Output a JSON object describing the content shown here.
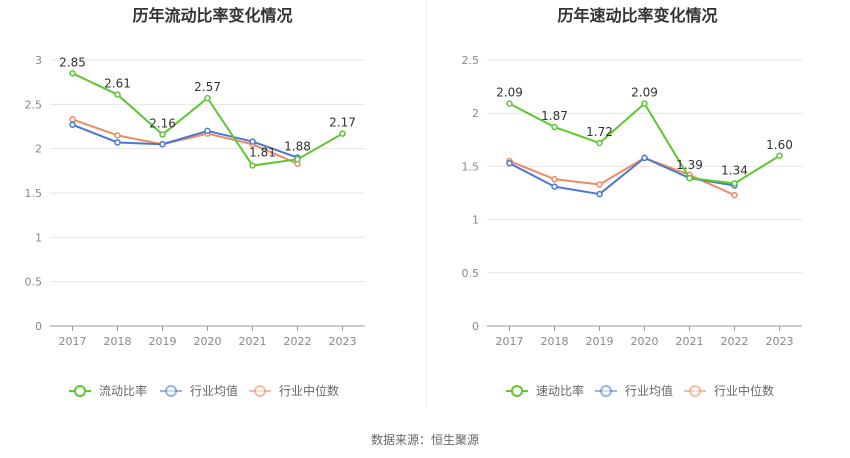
{
  "chart_data": [
    {
      "type": "line",
      "title": "历年流动比率变化情况",
      "categories": [
        "2017",
        "2018",
        "2019",
        "2020",
        "2021",
        "2022",
        "2023"
      ],
      "ylim": [
        0,
        3
      ],
      "yticks": [
        0,
        0.5,
        1,
        1.5,
        2,
        2.5,
        3
      ],
      "ytick_labels": [
        "0",
        "0.5",
        "1",
        "1.5",
        "2",
        "2.5",
        "3"
      ],
      "grid": true,
      "legend_position": "bottom",
      "series": [
        {
          "name": "流动比率",
          "color": "#5cc72e",
          "values": [
            2.85,
            2.61,
            2.16,
            2.57,
            1.81,
            1.88,
            2.17
          ],
          "labels": [
            "2.85",
            "2.61",
            "2.16",
            "2.57",
            "1.81",
            "1.88",
            "2.17"
          ]
        },
        {
          "name": "行业均值",
          "color": "#4a77d4",
          "values": [
            2.27,
            2.07,
            2.05,
            2.2,
            2.08,
            1.9,
            null
          ]
        },
        {
          "name": "行业中位数",
          "color": "#ef8a62",
          "values": [
            2.33,
            2.15,
            2.05,
            2.17,
            2.05,
            1.83,
            null
          ]
        }
      ]
    },
    {
      "type": "line",
      "title": "历年速动比率变化情况",
      "categories": [
        "2017",
        "2018",
        "2019",
        "2020",
        "2021",
        "2022",
        "2023"
      ],
      "ylim": [
        0,
        2.5
      ],
      "yticks": [
        0,
        0.5,
        1,
        1.5,
        2,
        2.5
      ],
      "ytick_labels": [
        "0",
        "0.5",
        "1",
        "1.5",
        "2",
        "2.5"
      ],
      "grid": true,
      "legend_position": "bottom",
      "series": [
        {
          "name": "速动比率",
          "color": "#5cc72e",
          "values": [
            2.09,
            1.87,
            1.72,
            2.09,
            1.39,
            1.34,
            1.6
          ],
          "labels": [
            "2.09",
            "1.87",
            "1.72",
            "2.09",
            "1.39",
            "1.34",
            "1.60"
          ]
        },
        {
          "name": "行业均值",
          "color": "#4a77d4",
          "values": [
            1.53,
            1.31,
            1.24,
            1.58,
            1.39,
            1.32,
            null
          ]
        },
        {
          "name": "行业中位数",
          "color": "#ef8a62",
          "values": [
            1.55,
            1.38,
            1.33,
            1.58,
            1.42,
            1.23,
            null
          ]
        }
      ]
    }
  ],
  "footer": {
    "source": "数据来源：恒生聚源"
  }
}
